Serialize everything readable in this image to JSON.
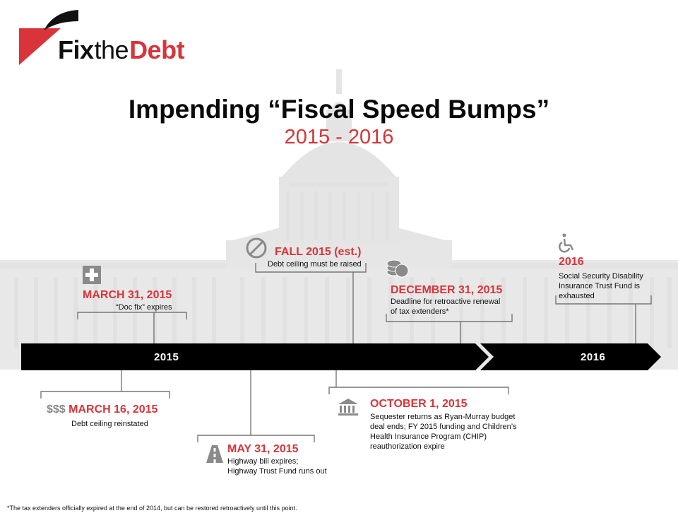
{
  "logo": {
    "fix": "Fix",
    "the": "the",
    "debt": "Debt"
  },
  "title": "Impending “Fiscal Speed Bumps”",
  "subtitle": "2015 - 2016",
  "timeline": {
    "year_2015": "2015",
    "year_2016": "2016"
  },
  "events": {
    "march31": {
      "date": "MARCH 31, 2015",
      "desc": "“Doc fix” expires",
      "icon": "medical-cross-icon"
    },
    "fall2015": {
      "date": "FALL 2015 (est.)",
      "desc": "Debt ceiling must be raised",
      "icon": "prohibited-icon"
    },
    "dec31": {
      "date": "DECEMBER 31, 2015",
      "desc_line1": "Deadline for retroactive renewal",
      "desc_line2": "of tax extenders*",
      "icon": "coins-icon"
    },
    "y2016": {
      "date": "2016",
      "desc_line1": "Social Security Disability",
      "desc_line2": "Insurance Trust Fund is",
      "desc_line3": "exhausted",
      "icon": "wheelchair-icon"
    },
    "march16": {
      "prefix": "$$$",
      "date": "MARCH 16, 2015",
      "desc": "Debt ceiling reinstated"
    },
    "may31": {
      "date": "MAY 31, 2015",
      "desc_line1": "Highway bill expires;",
      "desc_line2": "Highway Trust Fund runs out",
      "icon": "highway-icon"
    },
    "oct1": {
      "date": "OCTOBER 1, 2015",
      "desc_line1": "Sequester returns as Ryan-Murray budget",
      "desc_line2": "deal ends; FY 2015 funding and Children’s",
      "desc_line3": "Health Insurance Program (CHIP)",
      "desc_line4": "reauthorization expire",
      "icon": "bank-icon"
    }
  },
  "footnote": "*The tax extenders officially expired at the end of 2014, but can be restored retroactively until this point.",
  "colors": {
    "accent": "#d8343a",
    "bar": "#000000",
    "icon_gray": "#8a8a8a",
    "bracket": "#777777"
  }
}
